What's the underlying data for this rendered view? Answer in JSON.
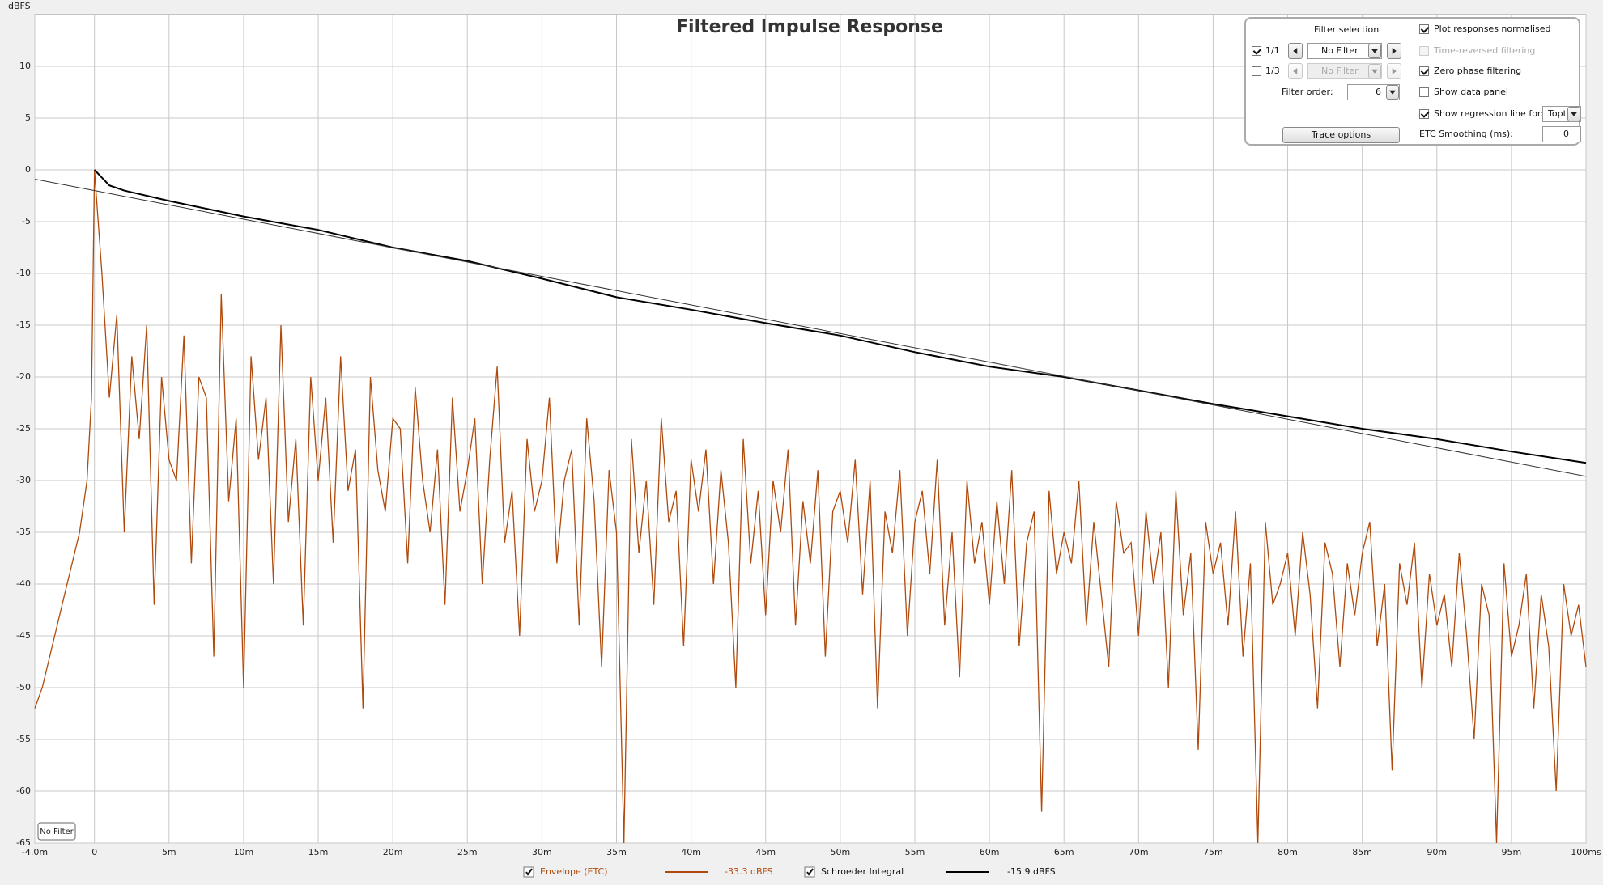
{
  "chart_data": {
    "type": "line",
    "title": "Filtered Impulse Response",
    "y_label": "dBFS",
    "xlim": [
      -4,
      100
    ],
    "ylim": [
      -65,
      15
    ],
    "grid": true,
    "xticks": [
      {
        "value": -4,
        "label": "-4.0m"
      },
      0,
      {
        "value": 5,
        "label": "5m"
      },
      {
        "value": 10,
        "label": "10m"
      },
      {
        "value": 15,
        "label": "15m"
      },
      {
        "value": 20,
        "label": "20m"
      },
      {
        "value": 25,
        "label": "25m"
      },
      {
        "value": 30,
        "label": "30m"
      },
      {
        "value": 35,
        "label": "35m"
      },
      {
        "value": 40,
        "label": "40m"
      },
      {
        "value": 45,
        "label": "45m"
      },
      {
        "value": 50,
        "label": "50m"
      },
      {
        "value": 55,
        "label": "55m"
      },
      {
        "value": 60,
        "label": "60m"
      },
      {
        "value": 65,
        "label": "65m"
      },
      {
        "value": 70,
        "label": "70m"
      },
      {
        "value": 75,
        "label": "75m"
      },
      {
        "value": 80,
        "label": "80m"
      },
      {
        "value": 85,
        "label": "85m"
      },
      {
        "value": 90,
        "label": "90m"
      },
      {
        "value": 95,
        "label": "95m"
      },
      {
        "value": 100,
        "label": "100ms"
      }
    ],
    "yticks": [
      10,
      5,
      0,
      -5,
      -10,
      -15,
      -20,
      -25,
      -30,
      -35,
      -40,
      -45,
      -50,
      -55,
      -60,
      -65
    ],
    "series": [
      {
        "name": "Envelope (ETC)",
        "color": "#b04a0c",
        "checked": true,
        "readout": "-33.3 dBFS",
        "x": [
          -4,
          -3.5,
          -3,
          -2.5,
          -2,
          -1.5,
          -1,
          -0.5,
          -0.2,
          0,
          0.5,
          1,
          1.5,
          2,
          2.5,
          3,
          3.5,
          4,
          4.5,
          5,
          5.5,
          6,
          6.5,
          7,
          7.5,
          8,
          8.5,
          9,
          9.5,
          10,
          10.5,
          11,
          11.5,
          12,
          12.5,
          13,
          13.5,
          14,
          14.5,
          15,
          15.5,
          16,
          16.5,
          17,
          17.5,
          18,
          18.5,
          19,
          19.5,
          20,
          20.5,
          21,
          21.5,
          22,
          22.5,
          23,
          23.5,
          24,
          24.5,
          25,
          25.5,
          26,
          26.5,
          27,
          27.5,
          28,
          28.5,
          29,
          29.5,
          30,
          30.5,
          31,
          31.5,
          32,
          32.5,
          33,
          33.5,
          34,
          34.5,
          35,
          35.5,
          36,
          36.5,
          37,
          37.5,
          38,
          38.5,
          39,
          39.5,
          40,
          40.5,
          41,
          41.5,
          42,
          42.5,
          43,
          43.5,
          44,
          44.5,
          45,
          45.5,
          46,
          46.5,
          47,
          47.5,
          48,
          48.5,
          49,
          49.5,
          50,
          50.5,
          51,
          51.5,
          52,
          52.5,
          53,
          53.5,
          54,
          54.5,
          55,
          55.5,
          56,
          56.5,
          57,
          57.5,
          58,
          58.5,
          59,
          59.5,
          60,
          60.5,
          61,
          61.5,
          62,
          62.5,
          63,
          63.5,
          64,
          64.5,
          65,
          65.5,
          66,
          66.5,
          67,
          67.5,
          68,
          68.5,
          69,
          69.5,
          70,
          70.5,
          71,
          71.5,
          72,
          72.5,
          73,
          73.5,
          74,
          74.5,
          75,
          75.5,
          76,
          76.5,
          77,
          77.5,
          78,
          78.5,
          79,
          79.5,
          80,
          80.5,
          81,
          81.5,
          82,
          82.5,
          83,
          83.5,
          84,
          84.5,
          85,
          85.5,
          86,
          86.5,
          87,
          87.5,
          88,
          88.5,
          89,
          89.5,
          90,
          90.5,
          91,
          91.5,
          92,
          92.5,
          93,
          93.5,
          94,
          94.5,
          95,
          95.5,
          96,
          96.5,
          97,
          97.5,
          98,
          98.5,
          99,
          99.5,
          100
        ],
        "values": [
          -52,
          -50,
          -47,
          -44,
          -41,
          -38,
          -35,
          -30,
          -22,
          0,
          -10,
          -22,
          -14,
          -35,
          -18,
          -26,
          -15,
          -42,
          -20,
          -28,
          -30,
          -16,
          -38,
          -20,
          -22,
          -47,
          -12,
          -32,
          -24,
          -50,
          -18,
          -28,
          -22,
          -40,
          -15,
          -34,
          -26,
          -44,
          -20,
          -30,
          -22,
          -36,
          -18,
          -31,
          -27,
          -52,
          -20,
          -29,
          -33,
          -24,
          -25,
          -38,
          -21,
          -30,
          -35,
          -27,
          -42,
          -22,
          -33,
          -29,
          -24,
          -40,
          -28,
          -19,
          -36,
          -31,
          -45,
          -26,
          -33,
          -30,
          -22,
          -38,
          -30,
          -27,
          -44,
          -24,
          -32,
          -48,
          -29,
          -35,
          -65,
          -26,
          -37,
          -30,
          -42,
          -24,
          -34,
          -31,
          -46,
          -28,
          -33,
          -27,
          -40,
          -29,
          -36,
          -50,
          -26,
          -38,
          -31,
          -43,
          -30,
          -35,
          -27,
          -44,
          -32,
          -38,
          -29,
          -47,
          -33,
          -31,
          -36,
          -28,
          -41,
          -30,
          -52,
          -33,
          -37,
          -29,
          -45,
          -34,
          -31,
          -39,
          -28,
          -44,
          -35,
          -49,
          -30,
          -38,
          -34,
          -42,
          -32,
          -40,
          -29,
          -46,
          -36,
          -33,
          -62,
          -31,
          -39,
          -35,
          -38,
          -30,
          -44,
          -34,
          -41,
          -48,
          -32,
          -37,
          -36,
          -45,
          -33,
          -40,
          -35,
          -50,
          -31,
          -43,
          -37,
          -56,
          -34,
          -39,
          -36,
          -44,
          -33,
          -47,
          -38,
          -65,
          -34,
          -42,
          -40,
          -37,
          -45,
          -35,
          -41,
          -52,
          -36,
          -39,
          -48,
          -38,
          -43,
          -37,
          -34,
          -46,
          -40,
          -58,
          -38,
          -42,
          -36,
          -50,
          -39,
          -44,
          -41,
          -48,
          -37,
          -45,
          -55,
          -40,
          -43,
          -65,
          -38,
          -47,
          -44,
          -39,
          -52,
          -41,
          -46,
          -60,
          -40,
          -45,
          -42,
          -48
        ]
      },
      {
        "name": "Schroeder Integral",
        "color": "#000000",
        "checked": true,
        "readout": "-15.9 dBFS",
        "x": [
          0,
          1,
          2,
          5,
          10,
          15,
          20,
          25,
          30,
          35,
          40,
          45,
          50,
          55,
          60,
          65,
          70,
          75,
          80,
          85,
          90,
          95,
          100
        ],
        "values": [
          0,
          -1.5,
          -2,
          -3,
          -4.5,
          -5.8,
          -7.5,
          -8.8,
          -10.5,
          -12.3,
          -13.5,
          -14.8,
          -16,
          -17.6,
          -19,
          -20,
          -21.3,
          -22.6,
          -23.8,
          -25,
          -26,
          -27.2,
          -28.3
        ]
      }
    ],
    "regression_line": {
      "color": "#333333",
      "x": [
        -4,
        100
      ],
      "values": [
        -0.9,
        -29.6
      ]
    },
    "filter_label": "No Filter"
  },
  "controls": {
    "filter_selection": {
      "title": "Filter selection",
      "rows": [
        {
          "label": "1/1",
          "checked": true,
          "value": "No Filter",
          "enabled": true
        },
        {
          "label": "1/3",
          "checked": false,
          "value": "No Filter",
          "enabled": false
        }
      ],
      "order_label": "Filter order:",
      "order": "6",
      "button": "Trace options"
    },
    "options": [
      {
        "label": "Plot responses normalised",
        "checked": true,
        "enabled": true
      },
      {
        "label": "Time-reversed filtering",
        "checked": false,
        "enabled": false
      },
      {
        "label": "Zero phase filtering",
        "checked": true,
        "enabled": true
      },
      {
        "label": "Show data panel",
        "checked": false,
        "enabled": true
      },
      {
        "label": "Show regression line for:",
        "checked": true,
        "enabled": true,
        "value": "Topt"
      }
    ],
    "smoothing_label": "ETC Smoothing (ms):",
    "smoothing": "0"
  }
}
